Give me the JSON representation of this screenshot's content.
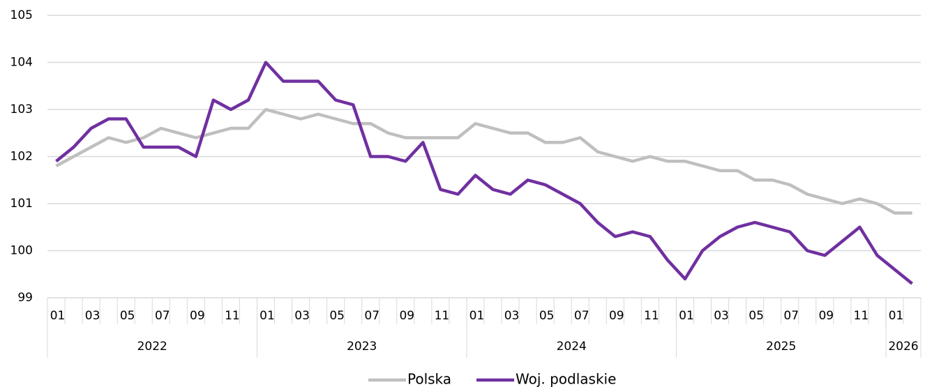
{
  "chart_data": {
    "type": "line",
    "categories": [
      "01",
      null,
      "03",
      null,
      "05",
      null,
      "07",
      null,
      "09",
      null,
      "11",
      null,
      "01",
      null,
      "03",
      null,
      "05",
      null,
      "07",
      null,
      "09",
      null,
      "11",
      null,
      "01",
      null,
      "03",
      null,
      "05",
      null,
      "07",
      null,
      "09",
      null,
      "11",
      null,
      "01",
      null,
      "03",
      null,
      "05",
      null,
      "07",
      null,
      "09",
      null,
      "11",
      null,
      "01",
      null
    ],
    "year_groups": [
      {
        "label": "2022",
        "count": 12
      },
      {
        "label": "2023",
        "count": 12
      },
      {
        "label": "2024",
        "count": 12
      },
      {
        "label": "2025",
        "count": 12
      },
      {
        "label": "2026",
        "count": 2
      }
    ],
    "series": [
      {
        "name": "Polska",
        "color": "#bfbfbf",
        "values": [
          101.8,
          102.0,
          102.2,
          102.4,
          102.3,
          102.4,
          102.6,
          102.5,
          102.4,
          102.5,
          102.6,
          102.6,
          103.0,
          102.9,
          102.8,
          102.9,
          102.8,
          102.7,
          102.7,
          102.5,
          102.4,
          102.4,
          102.4,
          102.4,
          102.7,
          102.6,
          102.5,
          102.5,
          102.3,
          102.3,
          102.4,
          102.1,
          102.0,
          101.9,
          102.0,
          101.9,
          101.9,
          101.8,
          101.7,
          101.7,
          101.5,
          101.5,
          101.4,
          101.2,
          101.1,
          101.0,
          101.1,
          101.0,
          100.8,
          100.8
        ]
      },
      {
        "name": "Woj. podlaskie",
        "color": "#7030a0",
        "values": [
          101.9,
          102.2,
          102.6,
          102.8,
          102.8,
          102.2,
          102.2,
          102.2,
          102.0,
          103.2,
          103.0,
          103.2,
          104.0,
          103.6,
          103.6,
          103.6,
          103.2,
          103.1,
          102.0,
          102.0,
          101.9,
          102.3,
          101.3,
          101.2,
          101.6,
          101.3,
          101.2,
          101.5,
          101.4,
          101.2,
          101.0,
          100.6,
          100.3,
          100.4,
          100.3,
          99.8,
          99.4,
          100.0,
          100.3,
          100.5,
          100.6,
          100.5,
          100.4,
          100.0,
          99.9,
          100.2,
          100.5,
          99.9,
          99.6,
          99.3
        ]
      }
    ],
    "ylim": [
      99,
      105
    ],
    "yticks": [
      99,
      100,
      101,
      102,
      103,
      104,
      105
    ],
    "grid": true,
    "legend": "bottom"
  }
}
